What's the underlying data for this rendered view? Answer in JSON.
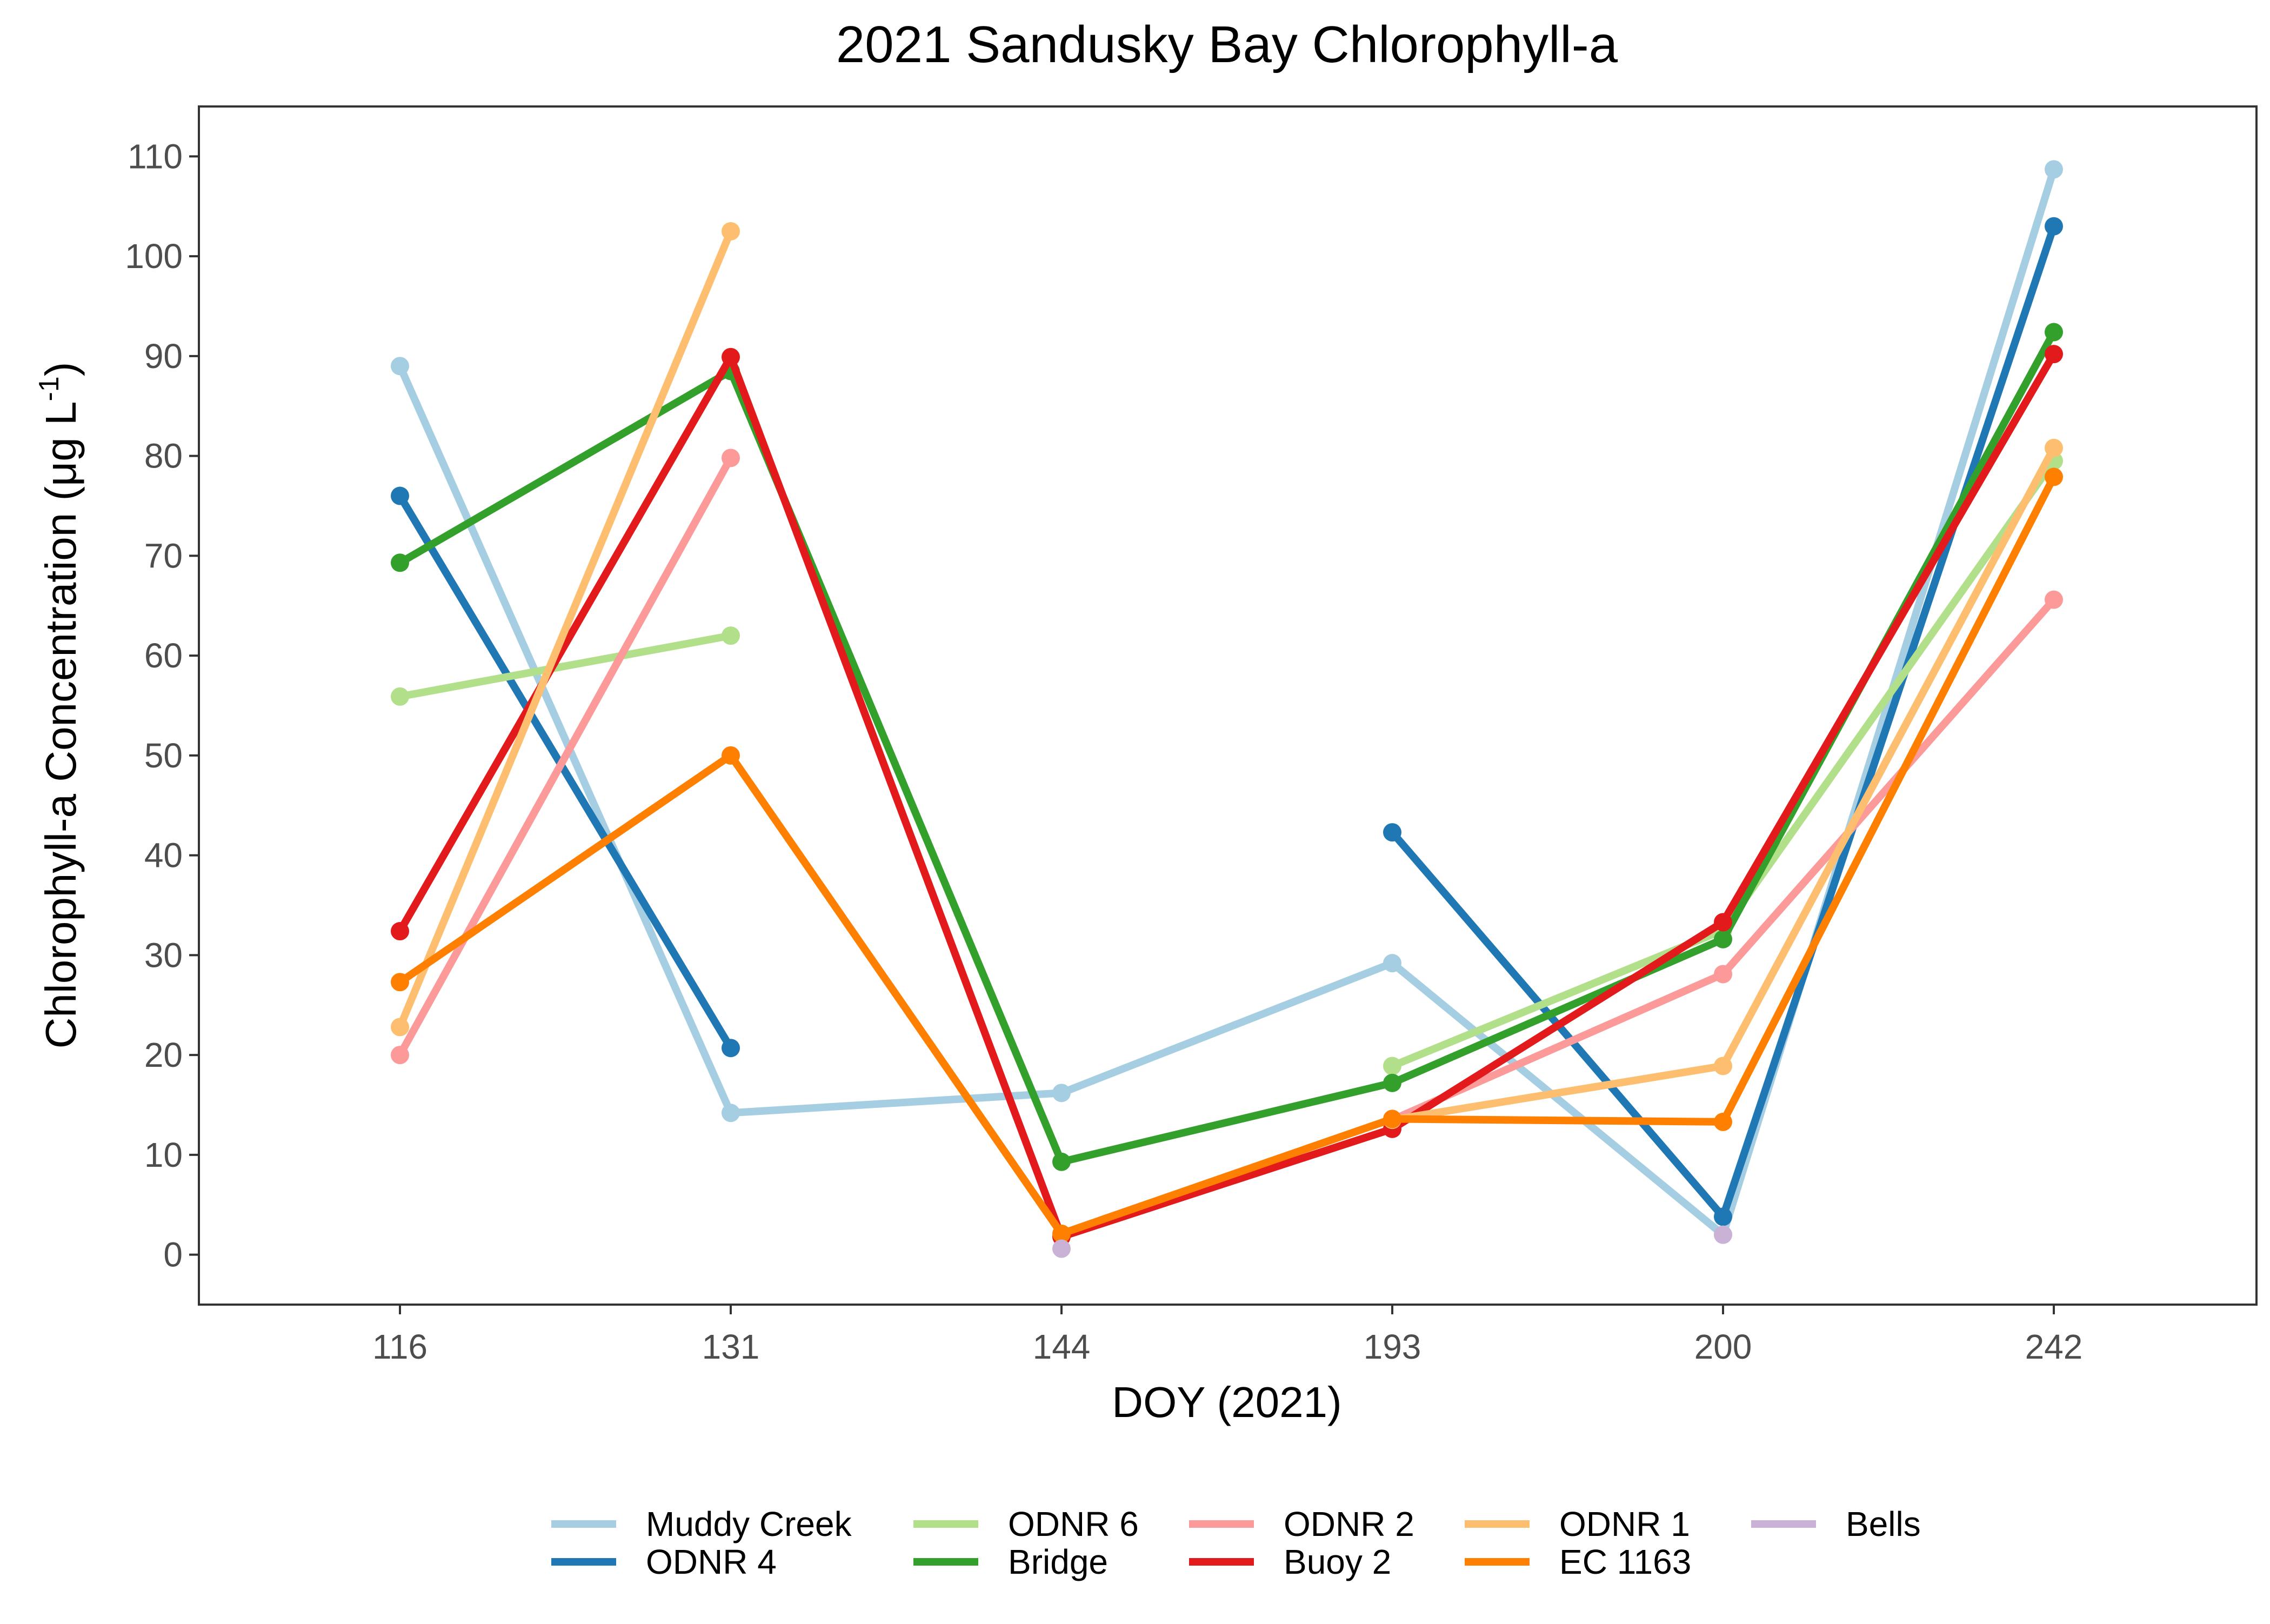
{
  "chart_data": {
    "type": "line",
    "title": "2021 Sandusky Bay Chlorophyll-a",
    "xlabel": "DOY (2021)",
    "ylabel_main": "Chlorophyll-a Concentration (μg L",
    "ylabel_sup": "-1",
    "ylabel_close": ")",
    "categories": [
      "116",
      "131",
      "144",
      "193",
      "200",
      "242"
    ],
    "ylim": [
      -5,
      115
    ],
    "yticks": [
      0,
      10,
      20,
      30,
      40,
      50,
      60,
      70,
      80,
      90,
      100,
      110
    ],
    "ytick_labels": [
      "0",
      "10",
      "20",
      "30",
      "40",
      "50",
      "60",
      "70",
      "80",
      "90",
      "100",
      "110"
    ],
    "grid": false,
    "legend_position": "bottom",
    "legend_order": [
      "Muddy Creek",
      "ODNR 6",
      "ODNR 2",
      "ODNR 1",
      "Bells",
      "ODNR 4",
      "Bridge",
      "Buoy 2",
      "EC 1163"
    ],
    "series": [
      {
        "name": "Muddy Creek",
        "color": "#A6CEE3",
        "values": [
          89,
          14.2,
          16.2,
          29.2,
          2.0,
          108.7
        ]
      },
      {
        "name": "ODNR 4",
        "color": "#1F78B4",
        "values": [
          76,
          20.7,
          null,
          42.3,
          3.8,
          103
        ]
      },
      {
        "name": "ODNR 6",
        "color": "#B2DF8A",
        "values": [
          55.9,
          62,
          null,
          18.9,
          32.5,
          79.5
        ]
      },
      {
        "name": "Bridge",
        "color": "#33A02C",
        "values": [
          69.3,
          88.5,
          9.3,
          17.2,
          31.6,
          92.4
        ]
      },
      {
        "name": "ODNR 2",
        "color": "#FB9A99",
        "values": [
          20,
          79.8,
          null,
          13.5,
          28.1,
          65.6
        ]
      },
      {
        "name": "Buoy 2",
        "color": "#E31A1C",
        "values": [
          32.4,
          89.9,
          1.8,
          12.6,
          33.3,
          90.2
        ]
      },
      {
        "name": "ODNR 1",
        "color": "#FDBF6F",
        "values": [
          22.8,
          102.5,
          null,
          13.5,
          18.9,
          80.8
        ]
      },
      {
        "name": "EC 1163",
        "color": "#FF7F00",
        "values": [
          27.3,
          50,
          2.1,
          13.6,
          13.3,
          77.9
        ]
      },
      {
        "name": "Bells",
        "color": "#CAB2D6",
        "values": [
          null,
          null,
          0.6,
          null,
          2.0,
          null
        ]
      }
    ]
  }
}
